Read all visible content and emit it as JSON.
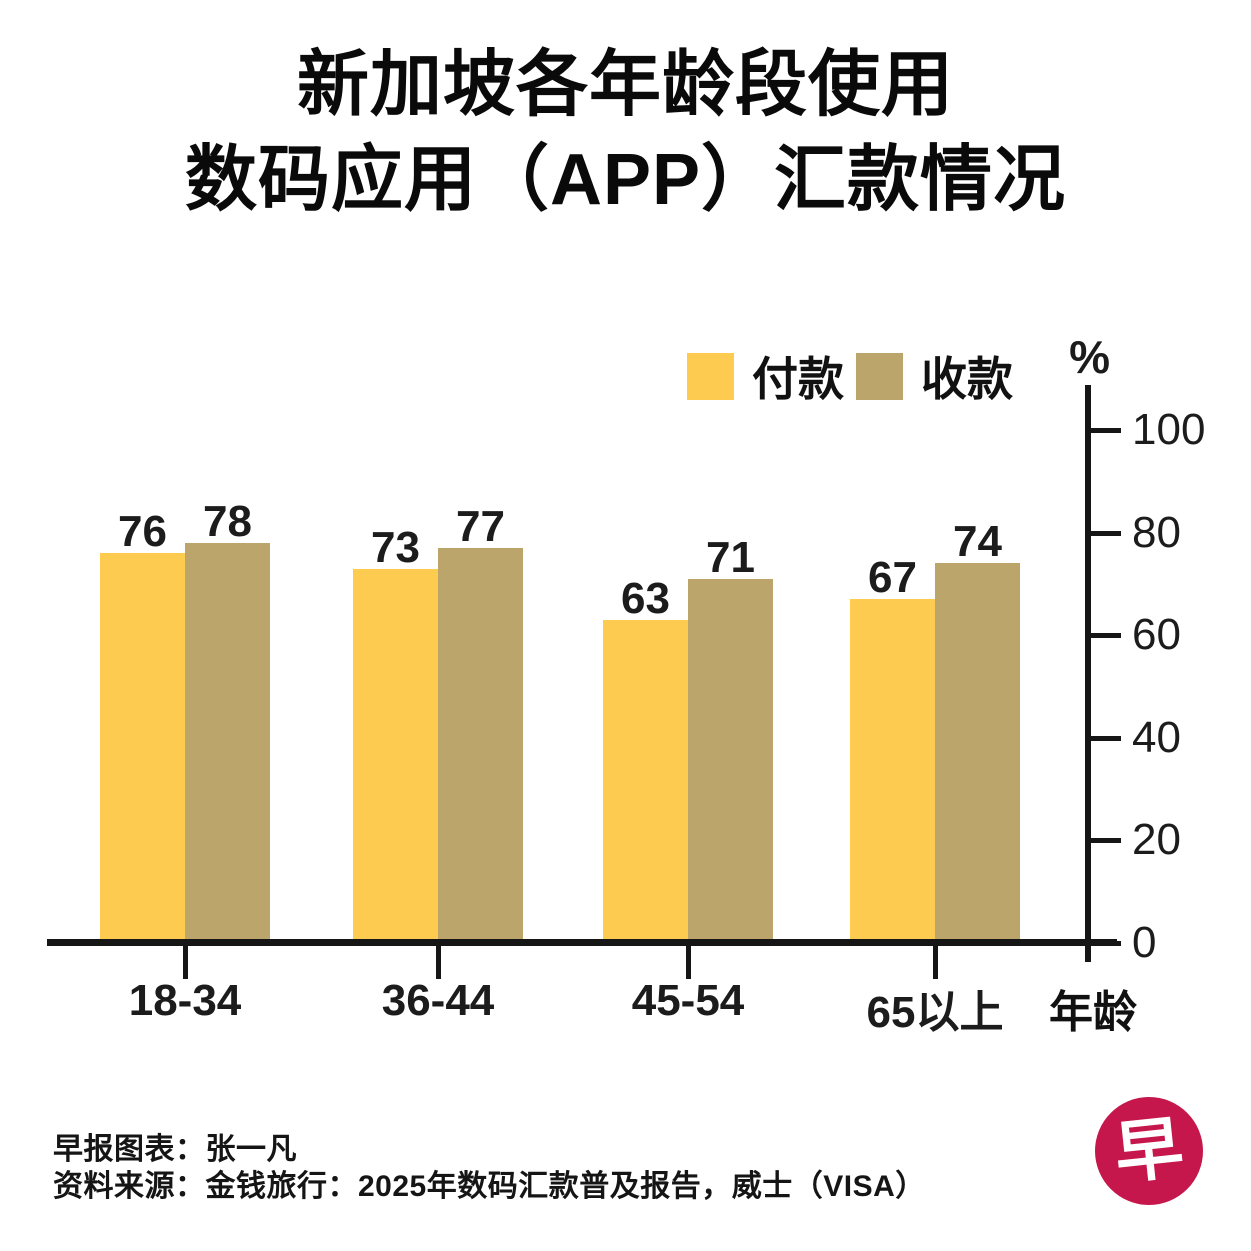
{
  "title": {
    "line1": "新加坡各年龄段使用",
    "line2": "数码应用（APP）汇款情况"
  },
  "legend": [
    {
      "label": "付款",
      "color": "#FDCB4F"
    },
    {
      "label": "收款",
      "color": "#BCA56B"
    }
  ],
  "axis": {
    "unit_label": "%",
    "x_axis_name": "年龄",
    "y_ticks": [
      0,
      20,
      40,
      60,
      80,
      100
    ]
  },
  "chart_data": {
    "type": "bar",
    "categories": [
      "18-34",
      "36-44",
      "45-54",
      "65以上"
    ],
    "series": [
      {
        "name": "付款",
        "key": "pay",
        "color": "#FDCB4F",
        "values": [
          76,
          73,
          63,
          67
        ]
      },
      {
        "name": "收款",
        "key": "receive",
        "color": "#BCA56B",
        "values": [
          78,
          77,
          71,
          74
        ]
      }
    ],
    "title": "新加坡各年龄段使用数码应用（APP）汇款情况",
    "xlabel": "年龄",
    "ylabel": "%",
    "ylim": [
      0,
      100
    ],
    "grid": false,
    "legend_position": "top-right",
    "value_labels": true
  },
  "footer": {
    "credit": "早报图表：张一凡",
    "source": "资料来源：金钱旅行：2025年数码汇款普及报告，威士（VISA）"
  },
  "logo": {
    "char": "早",
    "bg_color": "#C5174C"
  }
}
